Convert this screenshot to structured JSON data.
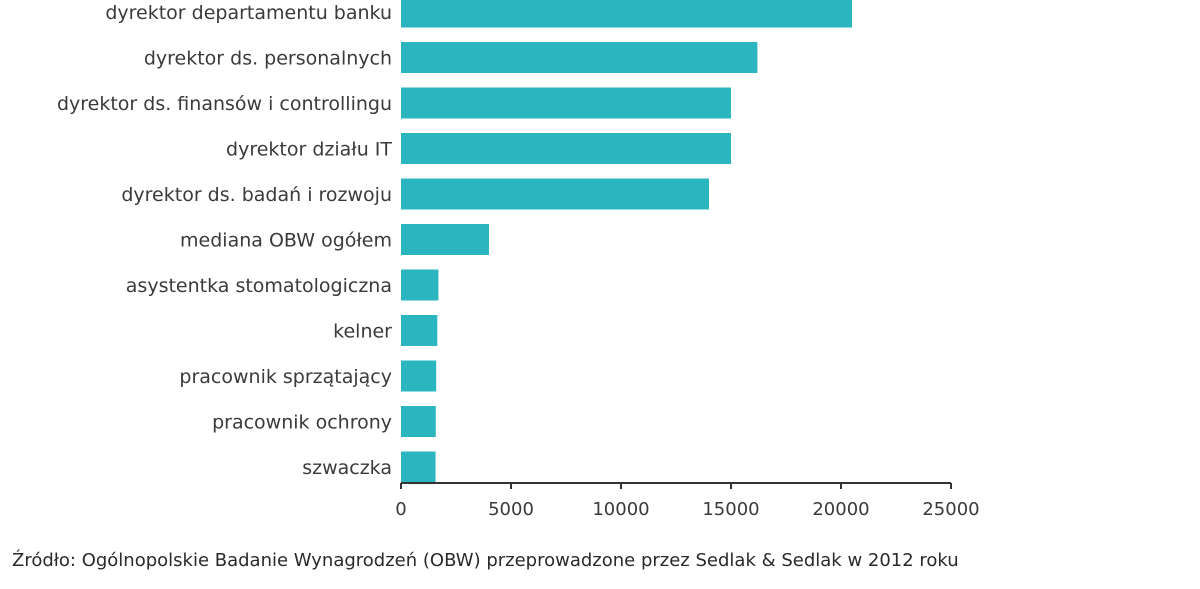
{
  "chart_data": {
    "type": "bar",
    "orientation": "horizontal",
    "categories": [
      "dyrektor departamentu banku",
      "dyrektor ds. personalnych",
      "dyrektor ds. finansów i controllingu",
      "dyrektor działu IT",
      "dyrektor ds. badań i rozwoju",
      "mediana OBW ogółem",
      "asystentka stomatologiczna",
      "kelner",
      "pracownik sprzątający",
      "pracownik ochrony",
      "szwaczka"
    ],
    "values": [
      20500,
      16200,
      15000,
      15000,
      14000,
      4000,
      1700,
      1650,
      1600,
      1580,
      1570
    ],
    "xlim": [
      0,
      25000
    ],
    "xticks": [
      0,
      5000,
      10000,
      15000,
      20000,
      25000
    ],
    "xtick_labels": [
      "0",
      "5000",
      "10000",
      "15000",
      "20000",
      "25000"
    ],
    "bar_color": "#2ab5bf",
    "axis_color": "#333333",
    "grid": false,
    "legend": "none"
  },
  "source_note": "Źródło: Ogólnopolskie Badanie Wynagrodzeń (OBW) przeprowadzone przez Sedlak & Sedlak w 2012 roku"
}
